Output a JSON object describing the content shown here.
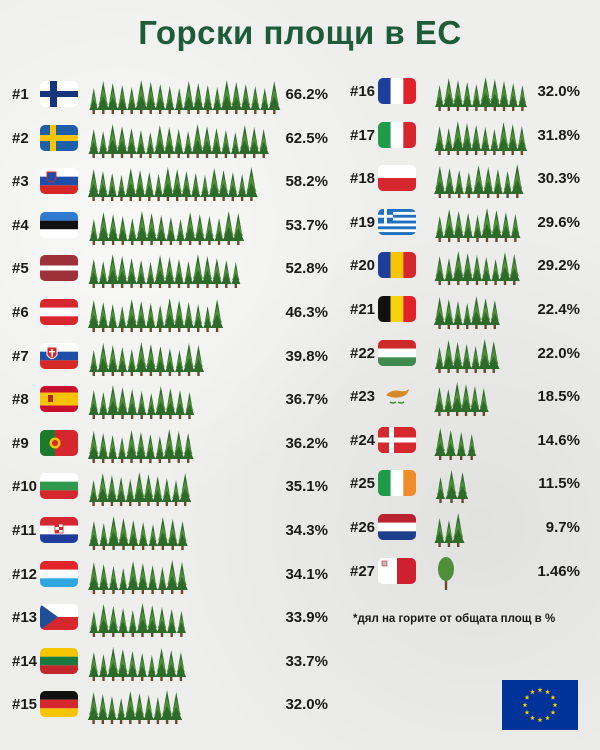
{
  "title": "Горски площи в ЕС",
  "footnote": "*дял на горите от общата площ в %",
  "colors": {
    "title": "#1d5b3a",
    "tree_dark": "#2e6b2a",
    "tree_light": "#4f8f3a",
    "trunk": "#6b4a2b"
  },
  "chart_data": {
    "type": "bar",
    "title": "Горски площи в ЕС",
    "unit": "%",
    "categories": [
      "#1",
      "#2",
      "#3",
      "#4",
      "#5",
      "#6",
      "#7",
      "#8",
      "#9",
      "#10",
      "#11",
      "#12",
      "#13",
      "#14",
      "#15",
      "#16",
      "#17",
      "#18",
      "#19",
      "#20",
      "#21",
      "#22",
      "#23",
      "#24",
      "#25",
      "#26",
      "#27"
    ],
    "values": [
      66.2,
      62.5,
      58.2,
      53.7,
      52.8,
      46.3,
      39.8,
      36.7,
      36.2,
      35.1,
      34.3,
      34.1,
      33.9,
      33.7,
      32.0,
      32.0,
      31.8,
      30.3,
      29.6,
      29.2,
      22.4,
      22.0,
      18.5,
      14.6,
      11.5,
      9.7,
      1.46
    ],
    "labels": [
      "66.2%",
      "62.5%",
      "58.2%",
      "53.7%",
      "52.8%",
      "46.3%",
      "39.8%",
      "36.7%",
      "36.2%",
      "35.1%",
      "34.3%",
      "34.1%",
      "33.9%",
      "33.7%",
      "32.0%",
      "32.0%",
      "31.8%",
      "30.3%",
      "29.6%",
      "29.2%",
      "22.4%",
      "22.0%",
      "18.5%",
      "14.6%",
      "11.5%",
      "9.7%",
      "1.46%"
    ],
    "flags": [
      "finland-flag",
      "sweden-flag",
      "slovenia-flag",
      "estonia-flag",
      "latvia-flag",
      "austria-flag",
      "slovakia-flag",
      "spain-flag",
      "portugal-flag",
      "bulgaria-flag",
      "croatia-flag",
      "luxembourg-flag",
      "czechia-flag",
      "lithuania-flag",
      "germany-flag",
      "france-flag",
      "italy-flag",
      "poland-flag",
      "greece-flag",
      "romania-flag",
      "belgium-flag",
      "hungary-flag",
      "cyprus-flag",
      "denmark-flag",
      "ireland-flag",
      "netherlands-flag",
      "malta-flag"
    ]
  }
}
